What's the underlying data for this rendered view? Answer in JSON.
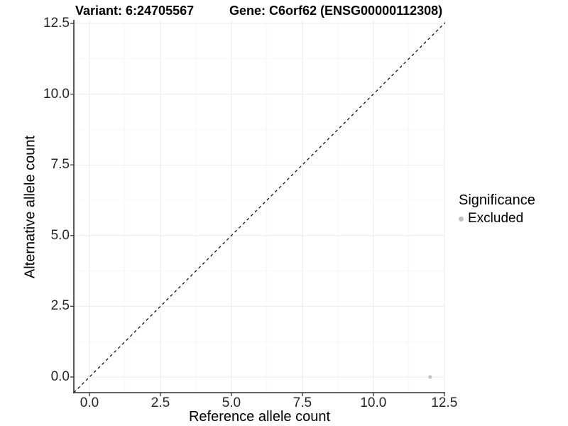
{
  "figure": {
    "title_variant": "Variant: 6:24705567",
    "title_gene": "Gene: C6orf62 (ENSG00000112308)"
  },
  "chart_data": {
    "type": "scatter",
    "title": "Variant: 6:24705567   Gene: C6orf62 (ENSG00000112308)",
    "xlabel": "Reference allele count",
    "ylabel": "Alternative allele count",
    "x_ticks": [
      0,
      2.5,
      5,
      7.5,
      10,
      12.5
    ],
    "x_tick_labels": [
      "0.0",
      "2.5",
      "5.0",
      "7.5",
      "10.0",
      "12.5"
    ],
    "y_ticks": [
      0,
      2.5,
      5,
      7.5,
      10,
      12.5
    ],
    "y_tick_labels": [
      "0.0",
      "2.5",
      "5.0",
      "7.5",
      "10.0",
      "12.5"
    ],
    "xlim": [
      -0.55,
      12.53
    ],
    "ylim": [
      -0.552,
      12.625
    ],
    "grid": "major+minor",
    "reference_line": {
      "kind": "abline",
      "slope": 1,
      "intercept": 0,
      "style": "dashed",
      "color": "#000000"
    },
    "series": [
      {
        "name": "Excluded",
        "color": "#c2c2c2",
        "points": [
          {
            "x": 12,
            "y": 0
          }
        ]
      }
    ],
    "legend": {
      "title": "Significance",
      "position": "right",
      "items": [
        {
          "label": "Excluded",
          "color": "#c2c2c2"
        }
      ]
    },
    "colors": {
      "grid_major": "#ebebeb",
      "grid_minor": "#f5f5f5",
      "axis_line": "#333333",
      "tick_mark": "#333333",
      "point": "#c2c2c2"
    }
  }
}
